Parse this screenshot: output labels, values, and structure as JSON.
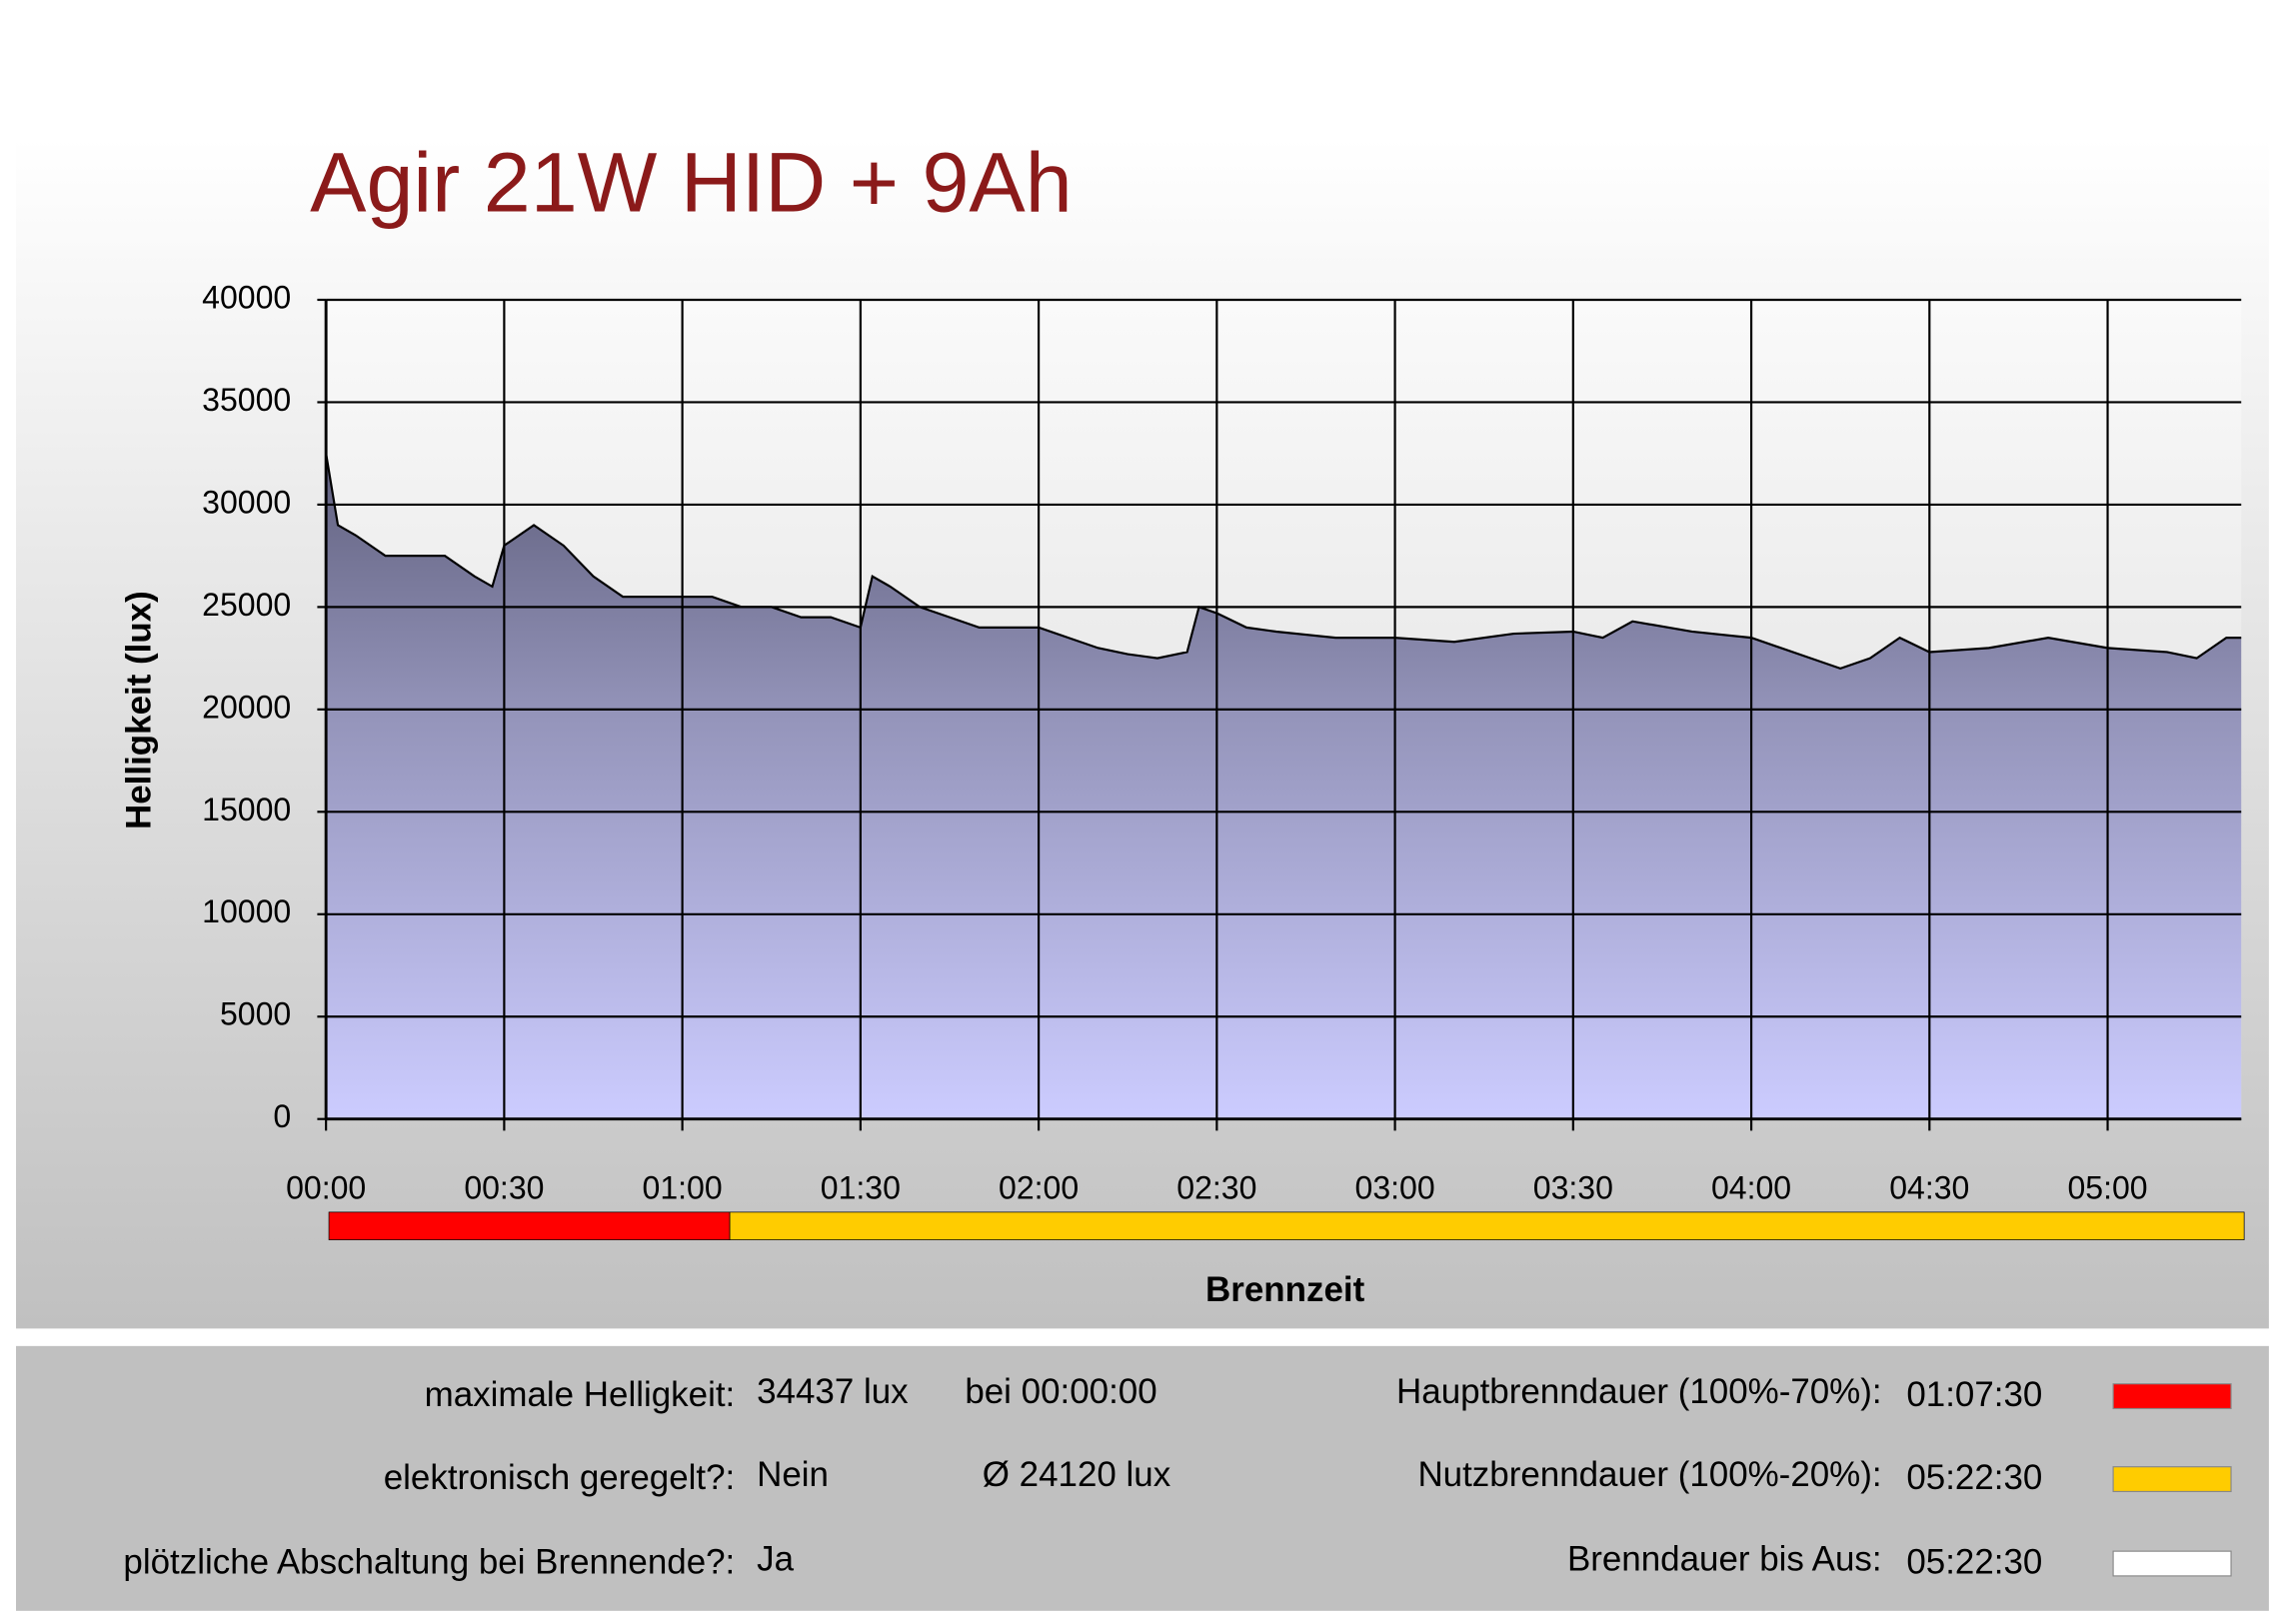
{
  "chart_data": {
    "type": "area",
    "title": "Agir 21W HID + 9Ah",
    "xlabel": "Brennzeit",
    "ylabel": "Helligkeit (lux)",
    "x": [
      0,
      2,
      5,
      10,
      15,
      20,
      25,
      28,
      30,
      35,
      40,
      45,
      50,
      55,
      60,
      65,
      70,
      75,
      80,
      85,
      90,
      92,
      95,
      100,
      105,
      110,
      115,
      120,
      125,
      130,
      135,
      140,
      145,
      147,
      150,
      155,
      160,
      170,
      180,
      190,
      200,
      210,
      215,
      220,
      230,
      240,
      250,
      255,
      260,
      265,
      270,
      280,
      290,
      300,
      310,
      315,
      320,
      322.5
    ],
    "values": [
      32500,
      29000,
      28500,
      27500,
      27500,
      27500,
      26500,
      26000,
      28000,
      29000,
      28000,
      26500,
      25500,
      25500,
      25500,
      25500,
      25000,
      25000,
      24500,
      24500,
      24000,
      26500,
      26000,
      25000,
      24500,
      24000,
      24000,
      24000,
      23500,
      23000,
      22700,
      22500,
      22800,
      25000,
      24700,
      24000,
      23800,
      23500,
      23500,
      23300,
      23700,
      23800,
      23500,
      24300,
      23800,
      23500,
      22500,
      22000,
      22500,
      23500,
      22800,
      23000,
      23500,
      23000,
      22800,
      22500,
      23500,
      23500
    ],
    "xlim": [
      0,
      322.5
    ],
    "ylim": [
      0,
      40000
    ],
    "yticks": [
      0,
      5000,
      10000,
      15000,
      20000,
      25000,
      30000,
      35000,
      40000
    ],
    "xticks": [
      {
        "value": 0,
        "label": "00:00"
      },
      {
        "value": 30,
        "label": "00:30"
      },
      {
        "value": 60,
        "label": "01:00"
      },
      {
        "value": 90,
        "label": "01:30"
      },
      {
        "value": 120,
        "label": "02:00"
      },
      {
        "value": 150,
        "label": "02:30"
      },
      {
        "value": 180,
        "label": "03:00"
      },
      {
        "value": 210,
        "label": "03:30"
      },
      {
        "value": 240,
        "label": "04:00"
      },
      {
        "value": 270,
        "label": "04:30"
      },
      {
        "value": 300,
        "label": "05:00"
      }
    ],
    "grid": true,
    "bands": [
      {
        "start": 0,
        "end": 67.5,
        "color": "#ff0000"
      },
      {
        "start": 67.5,
        "end": 322.5,
        "color": "#ffcc00"
      }
    ]
  },
  "info": {
    "left": [
      {
        "label": "maximale Helligkeit:",
        "value": "34437  lux",
        "extra": "bei  00:00:00"
      },
      {
        "label": "elektronisch geregelt?:",
        "value": "Nein",
        "extra": "Ø 24120  lux"
      },
      {
        "label": "plötzliche Abschaltung bei Brennende?:",
        "value": "Ja"
      }
    ],
    "right": [
      {
        "label": "Hauptbrenndauer (100%-70%):",
        "value": "01:07:30",
        "color": "#ff0000"
      },
      {
        "label": "Nutzbrenndauer (100%-20%):",
        "value": "05:22:30",
        "color": "#ffcc00"
      },
      {
        "label": "Brenndauer bis Aus:",
        "value": "05:22:30",
        "color": "#ffffff"
      }
    ]
  }
}
